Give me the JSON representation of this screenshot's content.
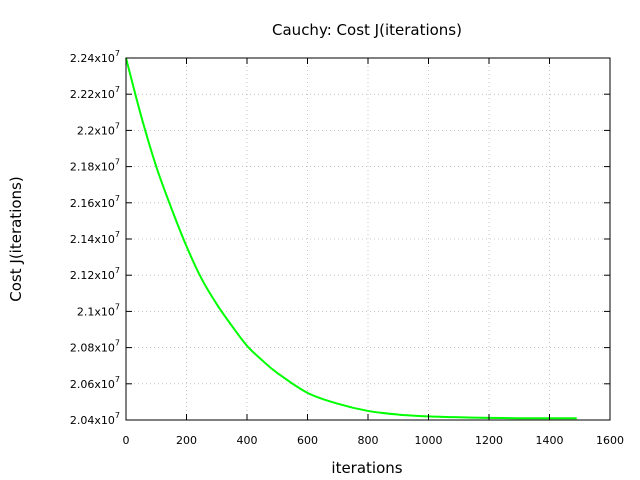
{
  "chart_data": {
    "type": "line",
    "title": "Cauchy: Cost J(iterations)",
    "xlabel": "iterations",
    "ylabel": "Cost J(iterations)",
    "xlim": [
      0,
      1600
    ],
    "ylim": [
      20400000,
      22400000
    ],
    "x_ticks": [
      0,
      200,
      400,
      600,
      800,
      1000,
      1200,
      1400,
      1600
    ],
    "x_tick_labels": [
      "0",
      "200",
      "400",
      "600",
      "800",
      "1000",
      "1200",
      "1400",
      "1600"
    ],
    "y_ticks": [
      20400000,
      20600000,
      20800000,
      21000000,
      21200000,
      21400000,
      21600000,
      21800000,
      22000000,
      22200000,
      22400000
    ],
    "y_tick_mantissas": [
      "2.04",
      "2.06",
      "2.08",
      "2.1",
      "2.12",
      "2.14",
      "2.16",
      "2.18",
      "2.2",
      "2.22",
      "2.24"
    ],
    "y_tick_base": "x10",
    "y_tick_exponent": "7",
    "grid": true,
    "series": [
      {
        "color": "#00ff00",
        "x": [
          0,
          50,
          100,
          150,
          200,
          250,
          300,
          350,
          400,
          450,
          500,
          600,
          700,
          800,
          900,
          1000,
          1100,
          1200,
          1300,
          1400,
          1490
        ],
        "y": [
          22400000,
          22080000,
          21800000,
          21570000,
          21360000,
          21180000,
          21040000,
          20920000,
          20810000,
          20730000,
          20660000,
          20550000,
          20490000,
          20450000,
          20430000,
          20420000,
          20415000,
          20412000,
          20410000,
          20410000,
          20410000
        ]
      }
    ]
  }
}
